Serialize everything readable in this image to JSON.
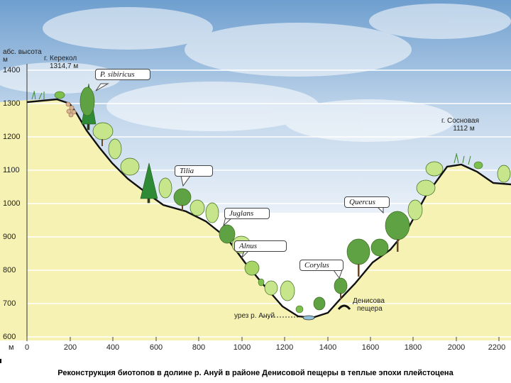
{
  "yaxis": {
    "title_line1": "абс. высота",
    "title_line2": "м",
    "ticks": [
      "1400",
      "1300",
      "1200",
      "1100",
      "1000",
      "900",
      "800",
      "700",
      "600"
    ]
  },
  "xaxis": {
    "unit": "м",
    "ticks": [
      "0",
      "200",
      "400",
      "600",
      "800",
      "1000",
      "1200",
      "1400",
      "1600",
      "1800",
      "2000",
      "2200"
    ]
  },
  "peaks": {
    "kerekol_name": "г. Керекол",
    "kerekol_height": "1314,7 м",
    "sosnovaya_name": "г. Сосновая",
    "sosnovaya_height": "1112 м"
  },
  "river_label": "урез р. Ануй",
  "cave_label_line1": "Денисова",
  "cave_label_line2": "пещера",
  "callouts": [
    "P. sibiricus",
    "Tilia",
    "Quercus",
    "Juglans",
    "Alnus",
    "Corylus"
  ],
  "caption": "Реконструкция биотопов в долине р. Ануй в районе Денисовой пещеры в теплые эпохи плейстоцена",
  "colors": {
    "sky_top": "#6f9fcf",
    "ground": "#f6f2b4",
    "gridline": "#ffffff",
    "profile": "#111111",
    "conifer": "#2f8a35",
    "deciduous": "#9fd36a",
    "water": "#8fc0d8"
  }
}
